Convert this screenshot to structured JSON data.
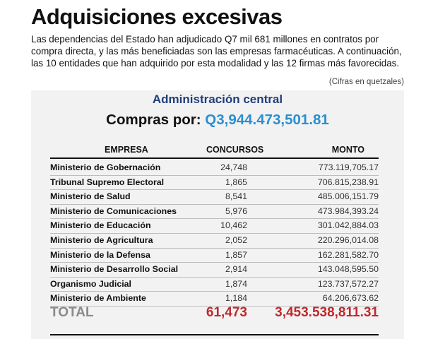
{
  "header": {
    "title": "Adquisiciones excesivas",
    "lede": "Las dependencias del Estado han adjudicado Q7 mil 681 millones en contratos por compra directa, y las más beneficiadas son las empresas farmacéuticas. A continuación, las 10 entidades que han adquirido por esta modalidad y las 12 firmas más favorecidas.",
    "note": "(Cifras en quetzales)"
  },
  "section": {
    "title": "Administración central",
    "summary_label": "Compras por:",
    "summary_amount": "Q3,944.473,501.81"
  },
  "table": {
    "columns": [
      "EMPRESA",
      "CONCURSOS",
      "MONTO"
    ],
    "rows": [
      {
        "name": "Ministerio de Gobernación",
        "concursos": "24,748",
        "monto": "773.119,705.17"
      },
      {
        "name": "Tribunal Supremo Electoral",
        "concursos": "1,865",
        "monto": "706.815,238.91"
      },
      {
        "name": "Ministerio de Salud",
        "concursos": "8,541",
        "monto": "485.006,151.79"
      },
      {
        "name": "Ministerio de Comunicaciones",
        "concursos": "5,976",
        "monto": "473.984,393.24"
      },
      {
        "name": "Ministerio de Educación",
        "concursos": "10,462",
        "monto": "301.042,884.03"
      },
      {
        "name": "Ministerio de Agricultura",
        "concursos": "2,052",
        "monto": "220.296,014.08"
      },
      {
        "name": "Ministerio de la Defensa",
        "concursos": "1,857",
        "monto": "162.281,582.70"
      },
      {
        "name": "Ministerio de Desarrollo Social",
        "concursos": "2,914",
        "monto": "143.048,595.50"
      },
      {
        "name": "Organismo Judicial",
        "concursos": "1,874",
        "monto": "123.737,572.27"
      },
      {
        "name": "Ministerio de Ambiente",
        "concursos": "1,184",
        "monto": "64.206,673.62"
      }
    ],
    "total": {
      "label": "TOTAL",
      "concursos": "61,473",
      "monto": "3,453.538,811.31"
    }
  },
  "colors": {
    "section_title": "#1f3f7a",
    "summary_amount": "#2a8fd1",
    "total_values": "#c0282d",
    "total_label": "#8a8a8a",
    "panel_background": "#f2f2f2"
  }
}
